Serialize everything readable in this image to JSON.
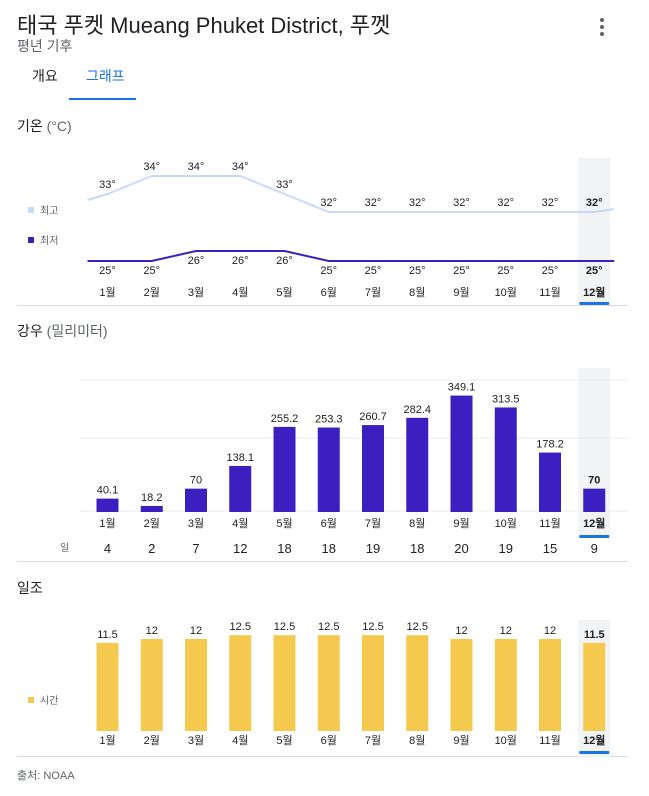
{
  "header": {
    "title": "태국 푸켓 Mueang Phuket District, 푸껫",
    "subtitle": "평년 기후"
  },
  "tabs": [
    {
      "label": "개요"
    },
    {
      "label": "그래프"
    }
  ],
  "months": [
    "1월",
    "2월",
    "3월",
    "4월",
    "5월",
    "6월",
    "7월",
    "8월",
    "9월",
    "10월",
    "11월",
    "12월"
  ],
  "selected_month_index": 11,
  "colors": {
    "high_line": "#c6dafc",
    "low_line": "#3b1fc0",
    "rain_bar": "#3b1fc0",
    "sun_bar": "#f4c94d",
    "accent": "#1a73e8"
  },
  "chart_data": [
    {
      "type": "line",
      "title": "기온",
      "unit": "(°C)",
      "categories": [
        "1월",
        "2월",
        "3월",
        "4월",
        "5월",
        "6월",
        "7월",
        "8월",
        "9월",
        "10월",
        "11월",
        "12월"
      ],
      "series": [
        {
          "name": "최고",
          "values": [
            33,
            34,
            34,
            34,
            33,
            32,
            32,
            32,
            32,
            32,
            32,
            32
          ],
          "labels": [
            "33°",
            "34°",
            "34°",
            "34°",
            "33°",
            "32°",
            "32°",
            "32°",
            "32°",
            "32°",
            "32°",
            "32°"
          ]
        },
        {
          "name": "최저",
          "values": [
            25,
            25,
            26,
            26,
            26,
            25,
            25,
            25,
            25,
            25,
            25,
            25
          ],
          "labels": [
            "25°",
            "25°",
            "26°",
            "26°",
            "26°",
            "25°",
            "25°",
            "25°",
            "25°",
            "25°",
            "25°",
            "25°"
          ]
        }
      ],
      "xlabel": "",
      "ylabel": ""
    },
    {
      "type": "bar",
      "title": "강우",
      "unit": "(밀리미터)",
      "categories": [
        "1월",
        "2월",
        "3월",
        "4월",
        "5월",
        "6월",
        "7월",
        "8월",
        "9월",
        "10월",
        "11월",
        "12월"
      ],
      "values": [
        40.1,
        18.2,
        70,
        138.1,
        255.2,
        253.3,
        260.7,
        282.4,
        349.1,
        313.5,
        178.2,
        70
      ],
      "labels": [
        "40.1",
        "18.2",
        "70",
        "138.1",
        "255.2",
        "253.3",
        "260.7",
        "282.4",
        "349.1",
        "313.5",
        "178.2",
        "70"
      ],
      "ylim": [
        0,
        400
      ],
      "days_label": "일",
      "days": [
        "4",
        "2",
        "7",
        "12",
        "18",
        "18",
        "19",
        "18",
        "20",
        "19",
        "15",
        "9"
      ]
    },
    {
      "type": "bar",
      "title": "일조",
      "unit": "",
      "categories": [
        "1월",
        "2월",
        "3월",
        "4월",
        "5월",
        "6월",
        "7월",
        "8월",
        "9월",
        "10월",
        "11월",
        "12월"
      ],
      "values": [
        11.5,
        12,
        12,
        12.5,
        12.5,
        12.5,
        12.5,
        12.5,
        12,
        12,
        12,
        11.5
      ],
      "labels": [
        "11.5",
        "12",
        "12",
        "12.5",
        "12.5",
        "12.5",
        "12.5",
        "12.5",
        "12",
        "12",
        "12",
        "11.5"
      ],
      "legend": "시간"
    }
  ],
  "footer": {
    "source": "출처: NOAA"
  }
}
